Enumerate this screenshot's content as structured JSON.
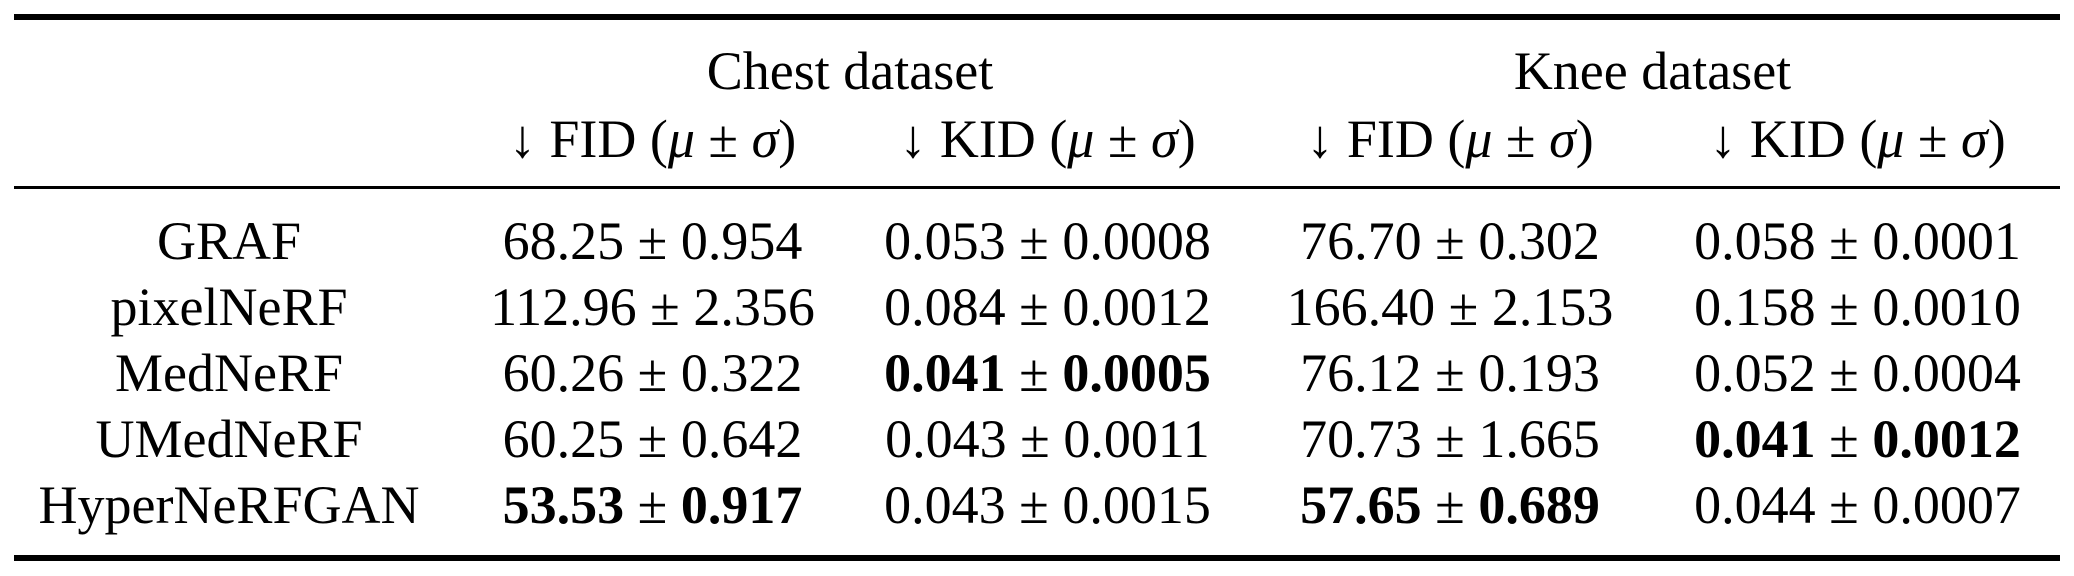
{
  "table": {
    "groups": [
      "Chest dataset",
      "Knee dataset"
    ],
    "metrics": [
      {
        "arrow": "↓",
        "name": "FID",
        "mu": "μ",
        "pm": "±",
        "sigma": "σ"
      },
      {
        "arrow": "↓",
        "name": "KID",
        "mu": "μ",
        "pm": "±",
        "sigma": "σ"
      },
      {
        "arrow": "↓",
        "name": "FID",
        "mu": "μ",
        "pm": "±",
        "sigma": "σ"
      },
      {
        "arrow": "↓",
        "name": "KID",
        "mu": "μ",
        "pm": "±",
        "sigma": "σ"
      }
    ],
    "rows": [
      {
        "method": "GRAF",
        "cells": [
          {
            "mean": "68.25",
            "std": "0.954",
            "bold": false
          },
          {
            "mean": "0.053",
            "std": "0.0008",
            "bold": false
          },
          {
            "mean": "76.70",
            "std": "0.302",
            "bold": false
          },
          {
            "mean": "0.058",
            "std": "0.0001",
            "bold": false
          }
        ]
      },
      {
        "method": "pixelNeRF",
        "cells": [
          {
            "mean": "112.96",
            "std": "2.356",
            "bold": false
          },
          {
            "mean": "0.084",
            "std": "0.0012",
            "bold": false
          },
          {
            "mean": "166.40",
            "std": "2.153",
            "bold": false
          },
          {
            "mean": "0.158",
            "std": "0.0010",
            "bold": false
          }
        ]
      },
      {
        "method": "MedNeRF",
        "cells": [
          {
            "mean": "60.26",
            "std": "0.322",
            "bold": false
          },
          {
            "mean": "0.041",
            "std": "0.0005",
            "bold": true
          },
          {
            "mean": "76.12",
            "std": "0.193",
            "bold": false
          },
          {
            "mean": "0.052",
            "std": "0.0004",
            "bold": false
          }
        ]
      },
      {
        "method": "UMedNeRF",
        "cells": [
          {
            "mean": "60.25",
            "std": "0.642",
            "bold": false
          },
          {
            "mean": "0.043",
            "std": "0.0011",
            "bold": false
          },
          {
            "mean": "70.73",
            "std": "1.665",
            "bold": false
          },
          {
            "mean": "0.041",
            "std": "0.0012",
            "bold": true
          }
        ]
      },
      {
        "method": "HyperNeRFGAN",
        "cells": [
          {
            "mean": "53.53",
            "std": "0.917",
            "bold": true
          },
          {
            "mean": "0.043",
            "std": "0.0015",
            "bold": false
          },
          {
            "mean": "57.65",
            "std": "0.689",
            "bold": true
          },
          {
            "mean": "0.044",
            "std": "0.0007",
            "bold": false
          }
        ]
      }
    ],
    "pm_symbol": "±"
  }
}
